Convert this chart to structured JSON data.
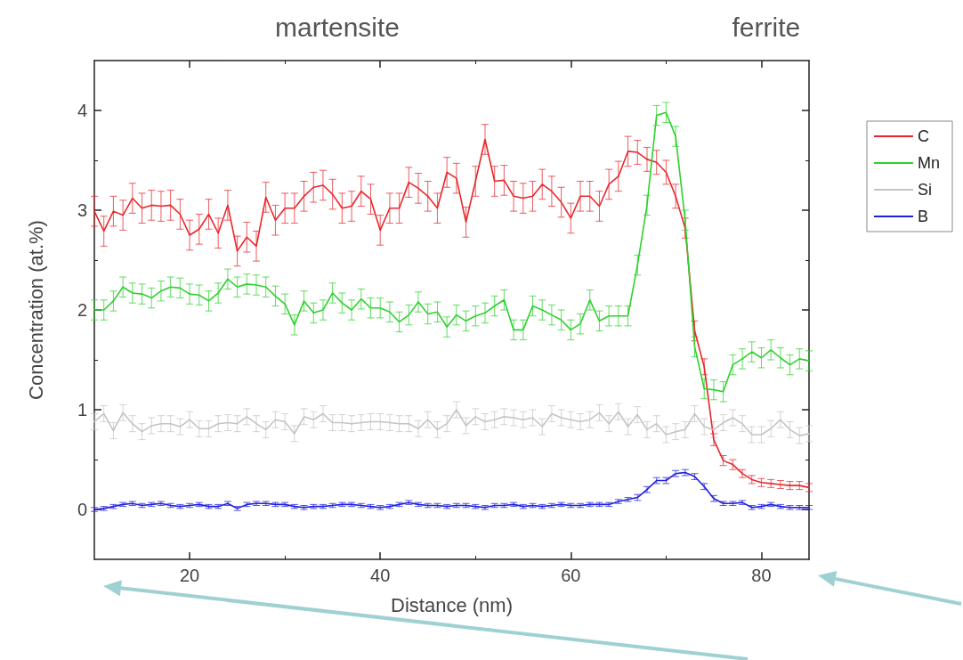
{
  "chart_data": {
    "type": "line",
    "xlabel": "Distance (nm)",
    "ylabel": "Concentration (at.%)",
    "x": [
      10,
      11,
      12,
      13,
      14,
      15,
      16,
      17,
      18,
      19,
      20,
      21,
      22,
      23,
      24,
      25,
      26,
      27,
      28,
      29,
      30,
      31,
      32,
      33,
      34,
      35,
      36,
      37,
      38,
      39,
      40,
      41,
      42,
      43,
      44,
      45,
      46,
      47,
      48,
      49,
      50,
      51,
      52,
      53,
      54,
      55,
      56,
      57,
      58,
      59,
      60,
      61,
      62,
      63,
      64,
      65,
      66,
      67,
      68,
      69,
      70,
      71,
      72,
      73,
      74,
      75,
      76,
      77,
      78,
      79,
      80,
      81,
      82,
      83,
      84,
      85
    ],
    "series": [
      {
        "name": "C",
        "color": "#e8262b",
        "values": [
          2.99,
          2.79,
          2.99,
          2.95,
          3.12,
          3.02,
          3.05,
          3.04,
          3.05,
          2.96,
          2.75,
          2.81,
          2.96,
          2.77,
          3.05,
          2.59,
          2.73,
          2.64,
          3.13,
          2.9,
          3.02,
          3.02,
          3.14,
          3.23,
          3.25,
          3.16,
          3.02,
          3.04,
          3.19,
          3.11,
          2.8,
          3.02,
          3.02,
          3.28,
          3.22,
          3.14,
          3.02,
          3.38,
          3.32,
          2.88,
          3.29,
          3.71,
          3.29,
          3.3,
          3.14,
          3.12,
          3.14,
          3.26,
          3.19,
          3.08,
          2.92,
          3.14,
          3.14,
          3.04,
          3.26,
          3.34,
          3.59,
          3.58,
          3.51,
          3.48,
          3.38,
          3.14,
          2.82,
          1.79,
          1.43,
          0.7,
          0.49,
          0.45,
          0.36,
          0.3,
          0.27,
          0.26,
          0.25,
          0.24,
          0.24,
          0.22
        ],
        "errors": [
          0.15,
          0.15,
          0.15,
          0.15,
          0.15,
          0.15,
          0.15,
          0.15,
          0.15,
          0.15,
          0.15,
          0.15,
          0.15,
          0.15,
          0.15,
          0.15,
          0.15,
          0.15,
          0.15,
          0.15,
          0.15,
          0.15,
          0.15,
          0.15,
          0.15,
          0.15,
          0.15,
          0.15,
          0.15,
          0.15,
          0.15,
          0.15,
          0.15,
          0.15,
          0.15,
          0.15,
          0.15,
          0.15,
          0.15,
          0.15,
          0.15,
          0.15,
          0.15,
          0.15,
          0.15,
          0.15,
          0.15,
          0.15,
          0.15,
          0.15,
          0.15,
          0.15,
          0.15,
          0.15,
          0.15,
          0.15,
          0.15,
          0.12,
          0.12,
          0.12,
          0.12,
          0.12,
          0.1,
          0.1,
          0.08,
          0.06,
          0.05,
          0.05,
          0.04,
          0.04,
          0.04,
          0.04,
          0.04,
          0.04,
          0.04,
          0.04
        ]
      },
      {
        "name": "Mn",
        "color": "#2ed12e",
        "values": [
          2.0,
          2.0,
          2.09,
          2.23,
          2.17,
          2.16,
          2.12,
          2.19,
          2.23,
          2.22,
          2.16,
          2.15,
          2.09,
          2.17,
          2.31,
          2.23,
          2.26,
          2.25,
          2.23,
          2.14,
          2.06,
          1.85,
          2.09,
          1.97,
          2.0,
          2.17,
          2.07,
          2.0,
          2.11,
          2.02,
          2.02,
          1.98,
          1.88,
          1.95,
          2.08,
          1.96,
          1.98,
          1.83,
          1.95,
          1.89,
          1.94,
          1.97,
          2.04,
          2.1,
          1.8,
          1.8,
          2.04,
          2.0,
          1.95,
          1.9,
          1.8,
          1.86,
          2.1,
          1.89,
          1.94,
          1.94,
          1.94,
          2.45,
          3.05,
          3.95,
          3.98,
          3.74,
          2.9,
          1.63,
          1.21,
          1.2,
          1.18,
          1.45,
          1.51,
          1.58,
          1.52,
          1.6,
          1.52,
          1.45,
          1.51,
          1.49
        ],
        "errors": [
          0.1,
          0.1,
          0.1,
          0.1,
          0.1,
          0.1,
          0.1,
          0.1,
          0.1,
          0.1,
          0.1,
          0.1,
          0.1,
          0.1,
          0.1,
          0.1,
          0.1,
          0.1,
          0.1,
          0.1,
          0.1,
          0.1,
          0.1,
          0.1,
          0.1,
          0.1,
          0.1,
          0.1,
          0.1,
          0.1,
          0.1,
          0.1,
          0.1,
          0.1,
          0.1,
          0.1,
          0.1,
          0.1,
          0.1,
          0.1,
          0.1,
          0.1,
          0.1,
          0.1,
          0.1,
          0.1,
          0.1,
          0.1,
          0.1,
          0.1,
          0.1,
          0.1,
          0.1,
          0.1,
          0.1,
          0.1,
          0.1,
          0.1,
          0.1,
          0.1,
          0.1,
          0.1,
          0.1,
          0.1,
          0.1,
          0.1,
          0.1,
          0.1,
          0.1,
          0.1,
          0.1,
          0.1,
          0.1,
          0.1,
          0.1,
          0.1
        ]
      },
      {
        "name": "Si",
        "color": "#c4c4c4",
        "values": [
          0.88,
          0.96,
          0.79,
          0.97,
          0.86,
          0.78,
          0.84,
          0.86,
          0.86,
          0.83,
          0.9,
          0.81,
          0.81,
          0.86,
          0.87,
          0.86,
          0.93,
          0.86,
          0.8,
          0.9,
          0.88,
          0.76,
          0.93,
          0.9,
          0.96,
          0.87,
          0.87,
          0.86,
          0.87,
          0.88,
          0.88,
          0.87,
          0.86,
          0.86,
          0.81,
          0.9,
          0.8,
          0.86,
          1.0,
          0.84,
          0.93,
          0.88,
          0.9,
          0.93,
          0.92,
          0.9,
          0.92,
          0.83,
          0.96,
          0.92,
          0.9,
          0.88,
          0.9,
          0.97,
          0.86,
          0.98,
          0.83,
          0.95,
          0.8,
          0.86,
          0.75,
          0.78,
          0.8,
          0.96,
          0.83,
          0.8,
          0.87,
          0.92,
          0.86,
          0.75,
          0.75,
          0.81,
          0.9,
          0.8,
          0.74,
          0.76
        ],
        "errors": [
          0.08,
          0.08,
          0.08,
          0.08,
          0.08,
          0.08,
          0.08,
          0.08,
          0.08,
          0.08,
          0.08,
          0.08,
          0.08,
          0.08,
          0.08,
          0.08,
          0.08,
          0.08,
          0.08,
          0.08,
          0.08,
          0.08,
          0.08,
          0.08,
          0.08,
          0.08,
          0.08,
          0.08,
          0.08,
          0.08,
          0.08,
          0.08,
          0.08,
          0.08,
          0.08,
          0.08,
          0.08,
          0.08,
          0.08,
          0.08,
          0.08,
          0.08,
          0.08,
          0.08,
          0.08,
          0.08,
          0.08,
          0.08,
          0.08,
          0.08,
          0.08,
          0.08,
          0.08,
          0.08,
          0.08,
          0.08,
          0.08,
          0.08,
          0.08,
          0.08,
          0.08,
          0.08,
          0.08,
          0.08,
          0.08,
          0.08,
          0.08,
          0.08,
          0.08,
          0.08,
          0.08,
          0.08,
          0.08,
          0.08,
          0.08,
          0.08
        ]
      },
      {
        "name": "B",
        "color": "#1f1fe0",
        "values": [
          0.0,
          0.01,
          0.03,
          0.05,
          0.06,
          0.04,
          0.05,
          0.06,
          0.04,
          0.03,
          0.04,
          0.05,
          0.03,
          0.03,
          0.06,
          0.01,
          0.05,
          0.06,
          0.06,
          0.05,
          0.05,
          0.03,
          0.02,
          0.03,
          0.03,
          0.04,
          0.05,
          0.05,
          0.04,
          0.03,
          0.02,
          0.03,
          0.05,
          0.07,
          0.05,
          0.04,
          0.04,
          0.03,
          0.04,
          0.04,
          0.03,
          0.02,
          0.04,
          0.04,
          0.05,
          0.03,
          0.04,
          0.03,
          0.04,
          0.05,
          0.04,
          0.04,
          0.05,
          0.05,
          0.05,
          0.08,
          0.1,
          0.12,
          0.2,
          0.29,
          0.29,
          0.36,
          0.37,
          0.33,
          0.23,
          0.11,
          0.06,
          0.06,
          0.07,
          0.02,
          0.03,
          0.05,
          0.03,
          0.02,
          0.02,
          0.02
        ],
        "errors": [
          0.02,
          0.02,
          0.02,
          0.02,
          0.02,
          0.02,
          0.02,
          0.02,
          0.02,
          0.02,
          0.02,
          0.02,
          0.02,
          0.02,
          0.02,
          0.02,
          0.02,
          0.02,
          0.02,
          0.02,
          0.02,
          0.02,
          0.02,
          0.02,
          0.02,
          0.02,
          0.02,
          0.02,
          0.02,
          0.02,
          0.02,
          0.02,
          0.02,
          0.02,
          0.02,
          0.02,
          0.02,
          0.02,
          0.02,
          0.02,
          0.02,
          0.02,
          0.02,
          0.02,
          0.02,
          0.02,
          0.02,
          0.02,
          0.02,
          0.02,
          0.02,
          0.02,
          0.02,
          0.02,
          0.02,
          0.02,
          0.02,
          0.03,
          0.03,
          0.03,
          0.03,
          0.03,
          0.03,
          0.03,
          0.03,
          0.03,
          0.02,
          0.02,
          0.02,
          0.02,
          0.02,
          0.02,
          0.02,
          0.02,
          0.02,
          0.02
        ]
      }
    ],
    "xlim": [
      10,
      85
    ],
    "xticks": [
      20,
      40,
      60,
      80
    ],
    "ylim": [
      -0.5,
      4.5
    ],
    "yticks": [
      0,
      1,
      2,
      3,
      4
    ],
    "annotations": [
      "martensite",
      "ferrite"
    ],
    "legend": "top right",
    "grid": false,
    "marker": "none",
    "line_style": "solid"
  }
}
